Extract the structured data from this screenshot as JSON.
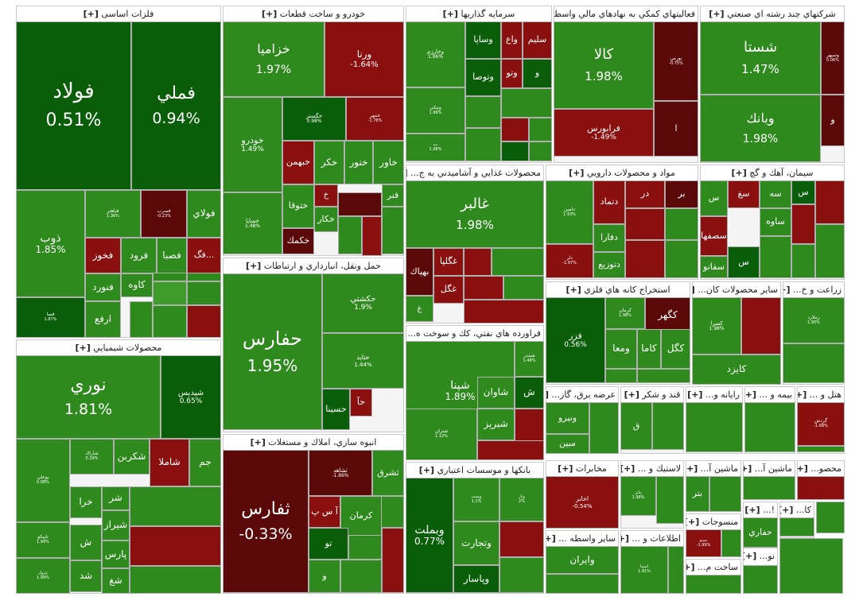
{
  "chart_data": {
    "type": "treemap",
    "title": "",
    "colors": {
      "up_strong": "#0a5e0a",
      "up": "#2f8a1e",
      "up_light": "#3e9c2a",
      "down": "#8a0f0f",
      "down_strong": "#5a0808",
      "down_light": "#b01a1a"
    },
    "sectors": [
      {
        "name": "فلزات اساسی",
        "tiles": [
          {
            "symbol": "فولاد",
            "change": "0.51%"
          },
          {
            "symbol": "فملي",
            "change": "0.94%"
          },
          {
            "symbol": "ذوب",
            "change": "1.85%"
          },
          {
            "symbol": "فباهنر",
            "change": "1.36%"
          },
          {
            "symbol": "فسرب",
            "change": "-0.23%"
          },
          {
            "symbol": "فولاي",
            "change": ""
          },
          {
            "symbol": "فخوز",
            "change": ""
          },
          {
            "symbol": "فرود",
            "change": ""
          },
          {
            "symbol": "فصبا",
            "change": ""
          },
          {
            "symbol": "فگ...",
            "change": ""
          },
          {
            "symbol": "كاوه",
            "change": ""
          },
          {
            "symbol": "فنورد",
            "change": ""
          },
          {
            "symbol": "ارفع",
            "change": ""
          },
          {
            "symbol": "فسا",
            "change": "1.87%"
          }
        ]
      },
      {
        "name": "خودرو و ساخت قطعات",
        "tiles": [
          {
            "symbol": "خزاميا",
            "change": "1.97%"
          },
          {
            "symbol": "ورنا",
            "change": "-1.64%"
          },
          {
            "symbol": "خودرو",
            "change": "1.49%"
          },
          {
            "symbol": "خگستر",
            "change": "0.98%"
          },
          {
            "symbol": "خمهر",
            "change": "-1.78%"
          },
          {
            "symbol": "خبهمن",
            "change": ""
          },
          {
            "symbol": "خكر",
            "change": ""
          },
          {
            "symbol": "خنور",
            "change": ""
          },
          {
            "symbol": "خاور",
            "change": ""
          },
          {
            "symbol": "خساپا",
            "change": "1.48%"
          },
          {
            "symbol": "ختوقا",
            "change": ""
          },
          {
            "symbol": "خ",
            "change": ""
          },
          {
            "symbol": "فنر",
            "change": ""
          },
          {
            "symbol": "خكار",
            "change": ""
          },
          {
            "symbol": "خكمك",
            "change": ""
          }
        ]
      },
      {
        "name": "سرمايه گذاريها",
        "tiles": [
          {
            "symbol": "وخارزم",
            "change": "1.96%"
          },
          {
            "symbol": "وساپا",
            "change": ""
          },
          {
            "symbol": "واع",
            "change": ""
          },
          {
            "symbol": "سليم",
            "change": ""
          },
          {
            "symbol": "وتو",
            "change": ""
          },
          {
            "symbol": "وتوصا",
            "change": ""
          },
          {
            "symbol": "و",
            "change": ""
          },
          {
            "symbol": "ونيكي",
            "change": "1.96%"
          },
          {
            "symbol": "ب",
            "change": "1.98%"
          }
        ]
      },
      {
        "name": "فعاليتهاي كمكي به نهادهاي مالي واسط",
        "tiles": [
          {
            "symbol": "كالا",
            "change": "1.98%"
          },
          {
            "symbol": "بورس",
            "change": "-0.75%"
          },
          {
            "symbol": "ا",
            "change": ""
          },
          {
            "symbol": "فرابورس",
            "change": "-1.49%"
          }
        ]
      },
      {
        "name": "شركتهاي چند رشته اي صنعتي",
        "tiles": [
          {
            "symbol": "شستا",
            "change": "1.47%"
          },
          {
            "symbol": "وسپهر",
            "change": "0.06%"
          },
          {
            "symbol": "وبانك",
            "change": "1.98%"
          },
          {
            "symbol": "و",
            "change": ""
          }
        ]
      },
      {
        "name": "محصولات غذايي و آشاميدني به ج...",
        "tiles": [
          {
            "symbol": "غالبر",
            "change": "1.98%"
          },
          {
            "symbol": "غگلپا",
            "change": ""
          },
          {
            "symbol": "بهپاك",
            "change": ""
          },
          {
            "symbol": "غگل",
            "change": ""
          },
          {
            "symbol": "غ",
            "change": ""
          }
        ]
      },
      {
        "name": "مواد و محصولات دارويي",
        "tiles": [
          {
            "symbol": "دامين",
            "change": "1.93%"
          },
          {
            "symbol": "دتماد",
            "change": ""
          },
          {
            "symbol": "در",
            "change": ""
          },
          {
            "symbol": "بر",
            "change": ""
          },
          {
            "symbol": "دفارا",
            "change": ""
          },
          {
            "symbol": "دلر",
            "change": "-1.97%"
          },
          {
            "symbol": "دتوزيع",
            "change": ""
          }
        ]
      },
      {
        "name": "سيمان، آهك و گچ",
        "tiles": [
          {
            "symbol": "س",
            "change": ""
          },
          {
            "symbol": "سغ",
            "change": ""
          },
          {
            "symbol": "سه",
            "change": ""
          },
          {
            "symbol": "س",
            "change": ""
          },
          {
            "symbol": "ساوه",
            "change": ""
          },
          {
            "symbol": "سصفها",
            "change": ""
          },
          {
            "symbol": "س",
            "change": ""
          },
          {
            "symbol": "سفانو",
            "change": ""
          }
        ]
      },
      {
        "name": "محصولات شيميايي",
        "tiles": [
          {
            "symbol": "نوري",
            "change": "1.81%"
          },
          {
            "symbol": "شپديس",
            "change": "0.65%"
          },
          {
            "symbol": "بوعلي",
            "change": "0.08%"
          },
          {
            "symbol": "شاراك",
            "change": "0.29%"
          },
          {
            "symbol": "شكربن",
            "change": ""
          },
          {
            "symbol": "شاملا",
            "change": ""
          },
          {
            "symbol": "جم",
            "change": ""
          },
          {
            "symbol": "خرا",
            "change": ""
          },
          {
            "symbol": "شر",
            "change": ""
          },
          {
            "symbol": "شيراز",
            "change": ""
          },
          {
            "symbol": "ش",
            "change": ""
          },
          {
            "symbol": "پارس",
            "change": ""
          },
          {
            "symbol": "شد",
            "change": ""
          },
          {
            "symbol": "شغ",
            "change": ""
          },
          {
            "symbol": "تاپيكو",
            "change": "1.99%"
          },
          {
            "symbol": "پترول",
            "change": "1.99%"
          }
        ]
      },
      {
        "name": "حمل ونقل، انبارداري و ارتباطات",
        "tiles": [
          {
            "symbol": "حفارس",
            "change": "1.95%"
          },
          {
            "symbol": "حكشتي",
            "change": "1.9%"
          },
          {
            "symbol": "حتايد",
            "change": "1.44%"
          },
          {
            "symbol": "حسينا",
            "change": ""
          },
          {
            "symbol": "حآ",
            "change": ""
          }
        ]
      },
      {
        "name": "فراورده هاي نفتي، كك و سوخت ه...",
        "tiles": [
          {
            "symbol": "شپنا",
            "change": "1.89%"
          },
          {
            "symbol": "شبندر",
            "change": "1.48%"
          },
          {
            "symbol": "شاوان",
            "change": ""
          },
          {
            "symbol": "ش",
            "change": ""
          },
          {
            "symbol": "شبريز",
            "change": ""
          },
          {
            "symbol": "شتران",
            "change": "1.12%"
          }
        ]
      },
      {
        "name": "استخراج كانه هاي فلزي",
        "tiles": [
          {
            "symbol": "فزر",
            "change": "0.56%"
          },
          {
            "symbol": "كرمان",
            "change": "1.98%"
          },
          {
            "symbol": "كگهر",
            "change": ""
          },
          {
            "symbol": "ومعا",
            "change": ""
          },
          {
            "symbol": "كاما",
            "change": ""
          },
          {
            "symbol": "كگل",
            "change": ""
          }
        ]
      },
      {
        "name": "ساير محصولات كان...",
        "tiles": [
          {
            "symbol": "كسرا",
            "change": "1.98%"
          },
          {
            "symbol": "كايزد",
            "change": ""
          }
        ]
      },
      {
        "name": "زراعت و خ...",
        "tiles": [
          {
            "symbol": "زملارد",
            "change": "1.95%"
          }
        ]
      },
      {
        "name": "انبوه سازي، املاك و مستغلات",
        "tiles": [
          {
            "symbol": "ثفارس",
            "change": "-0.33%"
          },
          {
            "symbol": "ثشاهد",
            "change": "-1.86%"
          },
          {
            "symbol": "ثشرق",
            "change": ""
          },
          {
            "symbol": "آ س پ",
            "change": ""
          },
          {
            "symbol": "كرمان",
            "change": ""
          },
          {
            "symbol": "تو",
            "change": ""
          },
          {
            "symbol": "و",
            "change": ""
          }
        ]
      },
      {
        "name": "بانكها و موسسات اعتباري",
        "tiles": [
          {
            "symbol": "وبملت",
            "change": "0.77%"
          },
          {
            "symbol": "وپست",
            "change": "1.1%"
          },
          {
            "symbol": "وپار",
            "change": "2%"
          },
          {
            "symbol": "وتجارت",
            "change": ""
          },
          {
            "symbol": "وپاسار",
            "change": ""
          }
        ]
      },
      {
        "name": "عرضه برق، گاز...",
        "tiles": [
          {
            "symbol": "ونيرو",
            "change": ""
          },
          {
            "symbol": "مبين",
            "change": ""
          }
        ]
      },
      {
        "name": "قند و شكر",
        "tiles": [
          {
            "symbol": "ق",
            "change": ""
          }
        ]
      },
      {
        "name": "رايانه و...",
        "tiles": []
      },
      {
        "name": "بيمه و ...",
        "tiles": []
      },
      {
        "name": "هتل و ...",
        "tiles": [
          {
            "symbol": "گردش",
            "change": "-1.68%"
          }
        ]
      },
      {
        "name": "مخابرات",
        "tiles": [
          {
            "symbol": "اخابر",
            "change": "-0.54%"
          }
        ]
      },
      {
        "name": "لاستيك و ...",
        "tiles": [
          {
            "symbol": "پتاير",
            "change": "1.98%"
          }
        ]
      },
      {
        "name": "ماشين آ...",
        "tiles": [
          {
            "symbol": "بتر",
            "change": ""
          }
        ]
      },
      {
        "name": "ماشين آ...",
        "tiles": []
      },
      {
        "name": "محصو...",
        "tiles": []
      },
      {
        "name": "ساير واسطه ...",
        "tiles": [
          {
            "symbol": "وايران",
            "change": ""
          }
        ]
      },
      {
        "name": "اطلاعات و ...",
        "tiles": [
          {
            "symbol": "اسينا",
            "change": "1.91%"
          }
        ]
      },
      {
        "name": "منسوجات",
        "tiles": [
          {
            "symbol": "نمينو",
            "change": "-1.99%"
          }
        ]
      },
      {
        "name": "ساخت م...",
        "tiles": []
      },
      {
        "name": "!...",
        "tiles": [
          {
            "symbol": "حفاري",
            "change": ""
          }
        ]
      },
      {
        "name": "نو...",
        "tiles": []
      },
      {
        "name": "كا...",
        "tiles": []
      }
    ]
  }
}
